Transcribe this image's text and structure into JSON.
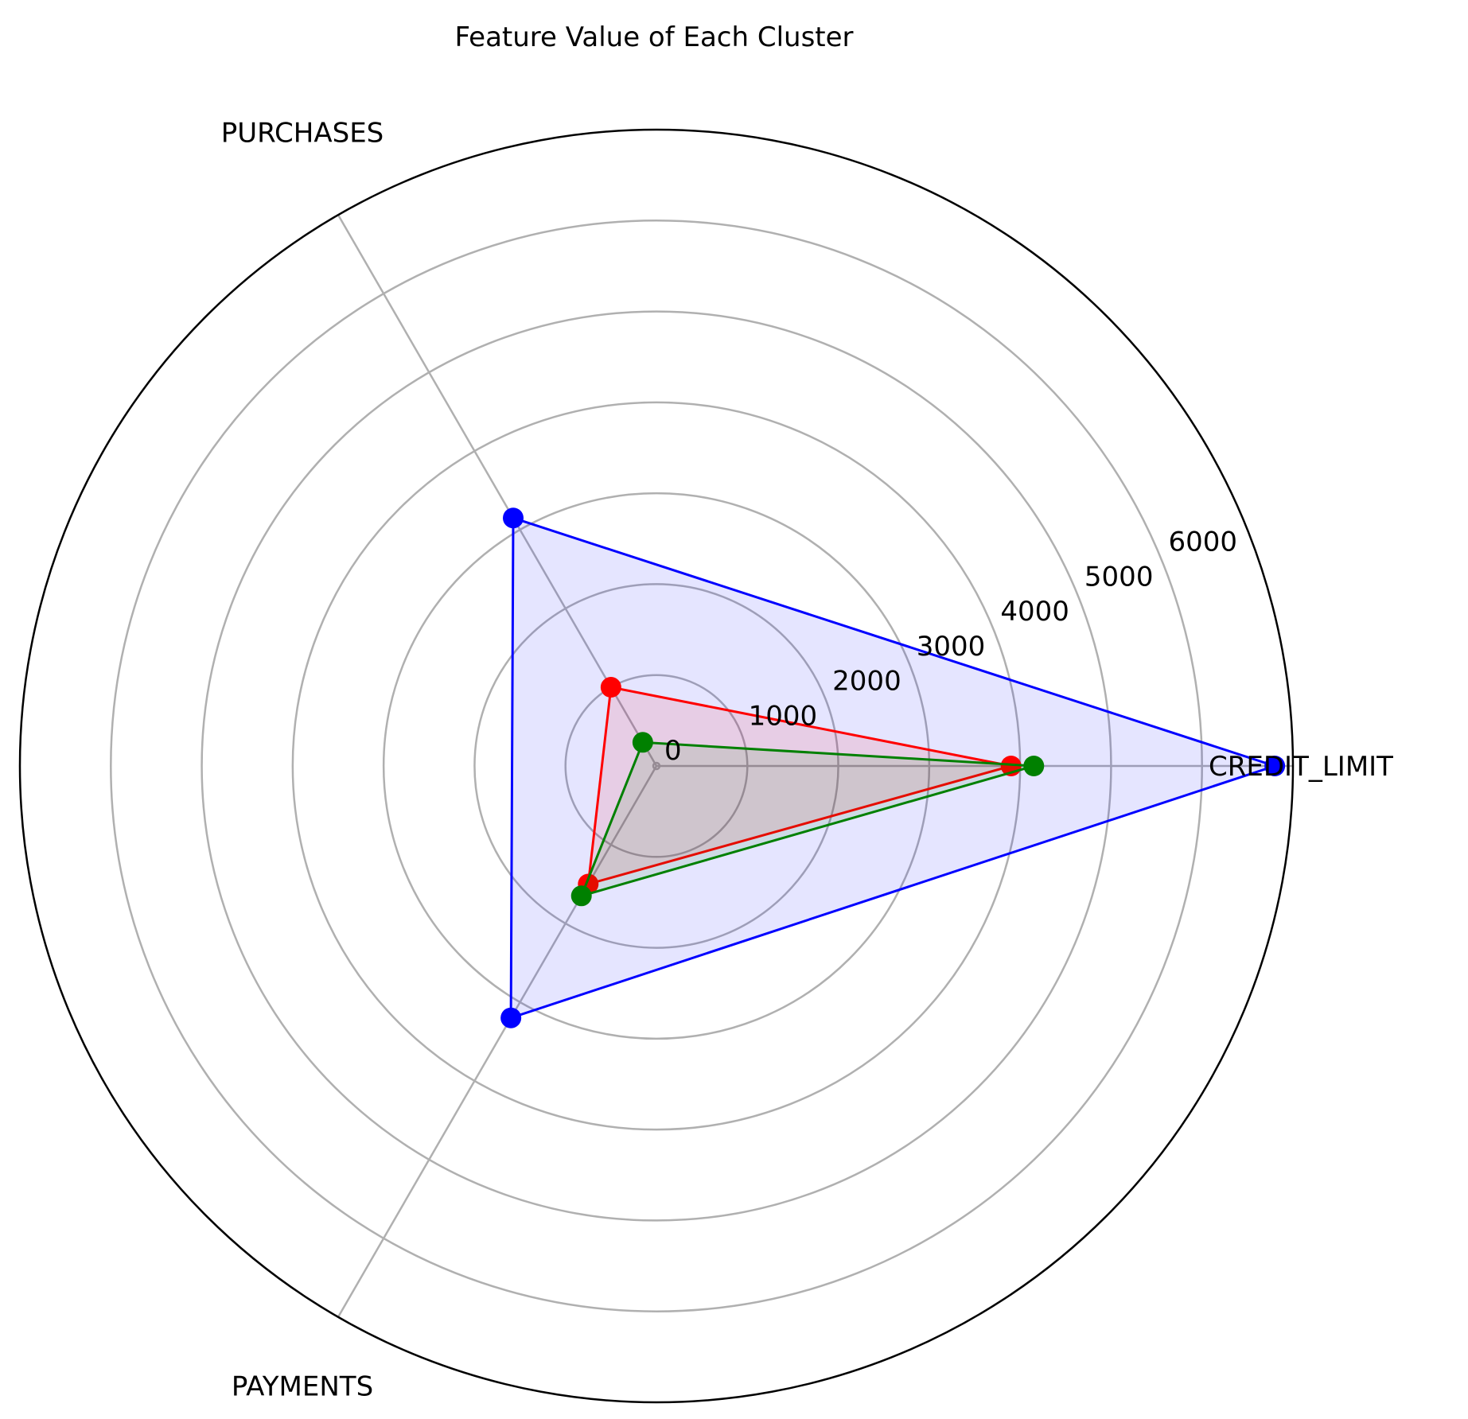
{
  "chart_data": {
    "type": "radar",
    "title": "Feature Value of Each Cluster",
    "axes": [
      "CREDIT_LIMIT",
      "PURCHASES",
      "PAYMENTS"
    ],
    "rlim": [
      0,
      7000
    ],
    "r_ticks": [
      0,
      1000,
      2000,
      3000,
      4000,
      5000,
      6000
    ],
    "r_tick_labels": [
      "0",
      "1000",
      "2000",
      "3000",
      "4000",
      "5000",
      "6000"
    ],
    "grid": true,
    "series": [
      {
        "color": "#0000ff",
        "values": [
          6800,
          3150,
          3200
        ],
        "fill": true
      },
      {
        "color": "#ff0000",
        "values": [
          3900,
          1000,
          1500
        ],
        "fill": true
      },
      {
        "color": "#008000",
        "values": [
          4150,
          300,
          1650
        ],
        "fill": true
      }
    ]
  }
}
